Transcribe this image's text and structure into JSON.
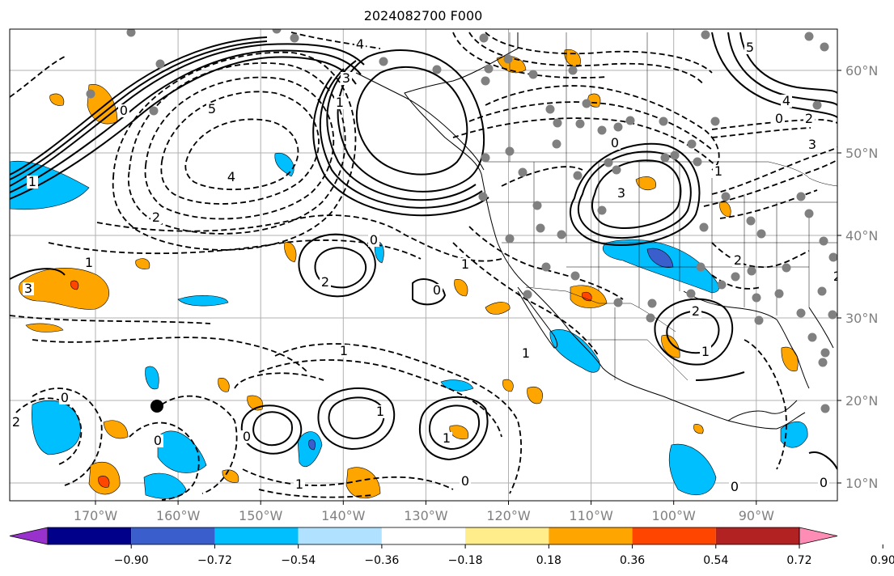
{
  "title": "2024082700 F000",
  "map": {
    "lon_ticks": [
      {
        "lon": -170,
        "label": "170°W"
      },
      {
        "lon": -160,
        "label": "160°W"
      },
      {
        "lon": -150,
        "label": "150°W"
      },
      {
        "lon": -140,
        "label": "140°W"
      },
      {
        "lon": -130,
        "label": "130°W"
      },
      {
        "lon": -120,
        "label": "120°W"
      },
      {
        "lon": -110,
        "label": "110°W"
      },
      {
        "lon": -100,
        "label": "100°W"
      },
      {
        "lon": -90,
        "label": "90°W"
      }
    ],
    "lat_ticks": [
      {
        "lat": 10,
        "label": "10°N"
      },
      {
        "lat": 20,
        "label": "20°N"
      },
      {
        "lat": 30,
        "label": "30°N"
      },
      {
        "lat": 40,
        "label": "40°N"
      },
      {
        "lat": 50,
        "label": "50°N"
      },
      {
        "lat": 60,
        "label": "60°N"
      }
    ],
    "contour_labels": [
      "4",
      "5",
      "4",
      "3",
      "2",
      "1",
      "0",
      "2",
      "0",
      "1",
      "1",
      "0",
      "1",
      "3",
      "0",
      "1",
      "2",
      "2",
      "1",
      "0",
      "2",
      "1",
      "0",
      "1",
      "5",
      "4",
      "3",
      "2",
      "1",
      "0",
      "0",
      "0",
      "0",
      "1",
      "1",
      "0",
      "3",
      "2"
    ],
    "colors": {
      "positive": "#ffa500",
      "positive_strong": "#ff4500",
      "negative": "#00bfff",
      "negative_strong": "#3a5fcd",
      "stations": "#808080",
      "marker": "#000000",
      "tick_labels": "#808080"
    }
  },
  "colorbar": {
    "bins": [
      {
        "color": "#9932cc"
      },
      {
        "color": "#00008b"
      },
      {
        "color": "#3a5fcd"
      },
      {
        "color": "#00bfff"
      },
      {
        "color": "#b0e2ff"
      },
      {
        "color": "#ffffff"
      },
      {
        "color": "#ffec8b"
      },
      {
        "color": "#ffa500"
      },
      {
        "color": "#ff4500"
      },
      {
        "color": "#b22222"
      },
      {
        "color": "#ff8cb4"
      }
    ],
    "tick_labels": [
      "−0.90",
      "−0.72",
      "−0.54",
      "−0.36",
      "−0.18",
      "0.18",
      "0.36",
      "0.54",
      "0.72",
      "0.90"
    ]
  }
}
